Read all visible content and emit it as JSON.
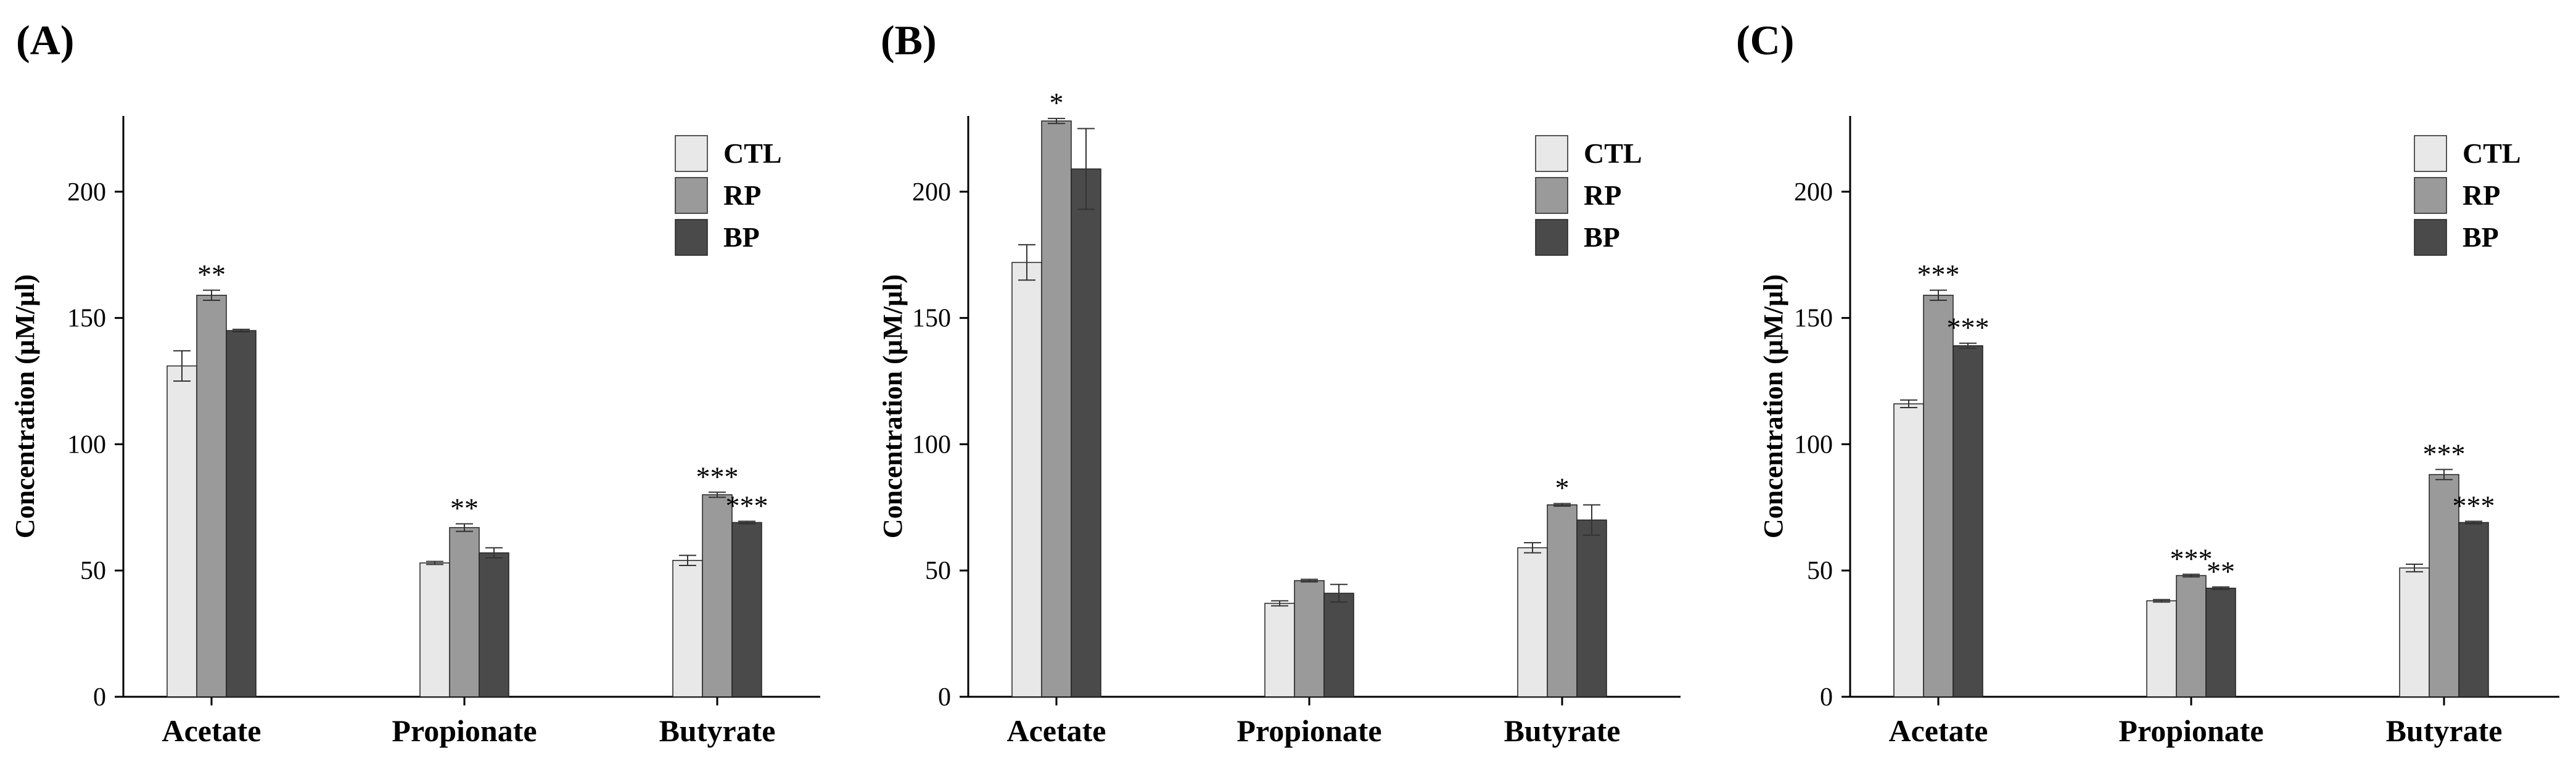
{
  "figure": {
    "colors": {
      "CTL": "#e8e8e8",
      "RP": "#9a9a9a",
      "BP": "#4a4a4a",
      "axis": "#000000"
    }
  },
  "chart_data": [
    {
      "type": "bar",
      "panel_label": "(A)",
      "ylabel": "Concentration (µM/µl)",
      "xlabel": "",
      "ylim": [
        0,
        230
      ],
      "yticks": [
        0,
        50,
        100,
        150,
        200
      ],
      "categories": [
        "Acetate",
        "Propionate",
        "Butyrate"
      ],
      "legend": [
        "CTL",
        "RP",
        "BP"
      ],
      "legend_position": "top-right",
      "series": [
        {
          "name": "CTL",
          "values": [
            131,
            53,
            54
          ],
          "errors": [
            6,
            0.6,
            2
          ]
        },
        {
          "name": "RP",
          "values": [
            159,
            67,
            80
          ],
          "errors": [
            2,
            1.5,
            1
          ]
        },
        {
          "name": "BP",
          "values": [
            145,
            57,
            69
          ],
          "errors": [
            0.5,
            2,
            0.5
          ]
        }
      ],
      "annotations": [
        {
          "category": 0,
          "series": 1,
          "text": "**"
        },
        {
          "category": 1,
          "series": 1,
          "text": "**"
        },
        {
          "category": 2,
          "series": 1,
          "text": "***"
        },
        {
          "category": 2,
          "series": 2,
          "text": "***"
        }
      ]
    },
    {
      "type": "bar",
      "panel_label": "(B)",
      "ylabel": "Concentration (µM/µl)",
      "xlabel": "",
      "ylim": [
        0,
        230
      ],
      "yticks": [
        0,
        50,
        100,
        150,
        200
      ],
      "categories": [
        "Acetate",
        "Propionate",
        "Butyrate"
      ],
      "legend": [
        "CTL",
        "RP",
        "BP"
      ],
      "legend_position": "top-right",
      "series": [
        {
          "name": "CTL",
          "values": [
            172,
            37,
            59
          ],
          "errors": [
            7,
            1,
            2
          ]
        },
        {
          "name": "RP",
          "values": [
            228,
            46,
            76
          ],
          "errors": [
            1,
            0.5,
            0.5
          ]
        },
        {
          "name": "BP",
          "values": [
            209,
            41,
            70
          ],
          "errors": [
            16,
            3.5,
            6
          ]
        }
      ],
      "annotations": [
        {
          "category": 0,
          "series": 1,
          "text": "*"
        },
        {
          "category": 2,
          "series": 1,
          "text": "*"
        }
      ]
    },
    {
      "type": "bar",
      "panel_label": "(C)",
      "ylabel": "Concentration (µM/µl)",
      "xlabel": "",
      "ylim": [
        0,
        230
      ],
      "yticks": [
        0,
        50,
        100,
        150,
        200
      ],
      "categories": [
        "Acetate",
        "Propionate",
        "Butyrate"
      ],
      "legend": [
        "CTL",
        "RP",
        "BP"
      ],
      "legend_position": "top-right",
      "series": [
        {
          "name": "CTL",
          "values": [
            116,
            38,
            51
          ],
          "errors": [
            1.5,
            0.5,
            1.5
          ]
        },
        {
          "name": "RP",
          "values": [
            159,
            48,
            88
          ],
          "errors": [
            2,
            0.5,
            2
          ]
        },
        {
          "name": "BP",
          "values": [
            139,
            43,
            69
          ],
          "errors": [
            1,
            0.5,
            0.5
          ]
        }
      ],
      "annotations": [
        {
          "category": 0,
          "series": 1,
          "text": "***"
        },
        {
          "category": 0,
          "series": 2,
          "text": "***"
        },
        {
          "category": 1,
          "series": 1,
          "text": "***"
        },
        {
          "category": 1,
          "series": 2,
          "text": "**"
        },
        {
          "category": 2,
          "series": 1,
          "text": "***"
        },
        {
          "category": 2,
          "series": 2,
          "text": "***"
        }
      ]
    }
  ]
}
